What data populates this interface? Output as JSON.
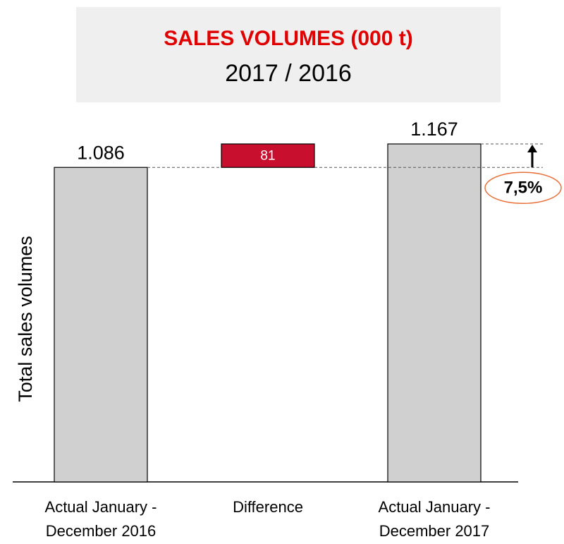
{
  "chart_data": {
    "type": "waterfall",
    "title": "SALES VOLUMES (000 t)",
    "subtitle": "2017 / 2016",
    "y_label": "Total sales volumes",
    "categories": [
      "Actual January - December 2016",
      "Difference",
      "Actual January - December 2017"
    ],
    "values": [
      1086,
      81,
      1167
    ],
    "value_labels": [
      "1.086",
      "81",
      "1.167"
    ],
    "measures": [
      "absolute",
      "relative",
      "total"
    ],
    "colors": [
      "#d0d0d0",
      "#c8102e",
      "#d0d0d0"
    ],
    "annotation": "7,5%"
  }
}
